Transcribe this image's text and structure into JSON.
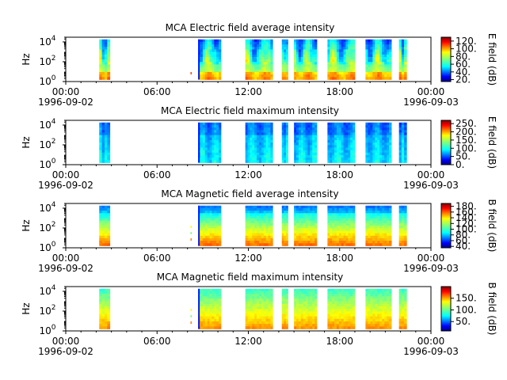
{
  "figure": {
    "background": "#ffffff"
  },
  "chart_data": [
    {
      "type": "heatmap",
      "title": "MCA  Electric field average intensity",
      "ylabel": "Hz",
      "yscale": "log",
      "ylim": [
        1,
        30000
      ],
      "yticks": [
        {
          "base": "10",
          "exp": "0"
        },
        {
          "base": "10",
          "exp": "2"
        },
        {
          "base": "10",
          "exp": "4"
        }
      ],
      "xlim": [
        "1996-09-02 00:00",
        "1996-09-03 00:00"
      ],
      "xticks": [
        "00:00",
        "06:00",
        "12:00",
        "18:00",
        "00:00"
      ],
      "xdates": [
        "1996-09-02",
        "1996-09-03"
      ],
      "colorbar": {
        "label": "E field (dB)",
        "colormap": "jet",
        "ticks": [
          "20.",
          "40.",
          "60.",
          "80.",
          "100.",
          "120."
        ]
      },
      "data_segments_hours": [
        [
          2.2,
          2.9
        ],
        [
          8.7,
          10.2
        ],
        [
          11.8,
          13.6
        ],
        [
          14.2,
          14.6
        ],
        [
          15.0,
          16.5
        ],
        [
          17.2,
          19.0
        ],
        [
          19.7,
          21.4
        ],
        [
          21.9,
          22.4
        ]
      ],
      "level_range_db": [
        15,
        130
      ]
    },
    {
      "type": "heatmap",
      "title": "MCA  Electric field maximum intensity",
      "ylabel": "Hz",
      "yscale": "log",
      "ylim": [
        1,
        30000
      ],
      "yticks": [
        {
          "base": "10",
          "exp": "0"
        },
        {
          "base": "10",
          "exp": "2"
        },
        {
          "base": "10",
          "exp": "4"
        }
      ],
      "xlim": [
        "1996-09-02 00:00",
        "1996-09-03 00:00"
      ],
      "xticks": [
        "00:00",
        "06:00",
        "12:00",
        "18:00",
        "00:00"
      ],
      "xdates": [
        "1996-09-02",
        "1996-09-03"
      ],
      "colorbar": {
        "label": "E field (dB)",
        "colormap": "jet",
        "ticks": [
          "0.",
          "50.",
          "100.",
          "150.",
          "200.",
          "250."
        ]
      },
      "data_segments_hours": [
        [
          2.2,
          2.9
        ],
        [
          8.7,
          10.2
        ],
        [
          11.8,
          13.6
        ],
        [
          14.2,
          14.6
        ],
        [
          15.0,
          16.5
        ],
        [
          17.2,
          19.0
        ],
        [
          19.7,
          21.4
        ],
        [
          21.9,
          22.4
        ]
      ],
      "level_range_db": [
        0,
        270
      ]
    },
    {
      "type": "heatmap",
      "title": "MCA  Magnetic field average intensity",
      "ylabel": "Hz",
      "yscale": "log",
      "ylim": [
        1,
        30000
      ],
      "yticks": [
        {
          "base": "10",
          "exp": "0"
        },
        {
          "base": "10",
          "exp": "2"
        },
        {
          "base": "10",
          "exp": "4"
        }
      ],
      "xlim": [
        "1996-09-02 00:00",
        "1996-09-03 00:00"
      ],
      "xticks": [
        "00:00",
        "06:00",
        "12:00",
        "18:00",
        "00:00"
      ],
      "xdates": [
        "1996-09-02",
        "1996-09-03"
      ],
      "colorbar": {
        "label": "B field (dB)",
        "colormap": "jet",
        "ticks": [
          "40.",
          "60.",
          "80.",
          "100.",
          "120.",
          "140.",
          "160.",
          "180."
        ]
      },
      "data_segments_hours": [
        [
          2.2,
          2.9
        ],
        [
          8.7,
          10.2
        ],
        [
          11.8,
          13.6
        ],
        [
          14.2,
          14.6
        ],
        [
          15.0,
          16.5
        ],
        [
          17.2,
          19.0
        ],
        [
          19.7,
          21.4
        ],
        [
          21.9,
          22.4
        ]
      ],
      "level_range_db": [
        35,
        190
      ]
    },
    {
      "type": "heatmap",
      "title": "MCA  Magnetic field maximum intensity",
      "ylabel": "Hz",
      "yscale": "log",
      "ylim": [
        1,
        30000
      ],
      "yticks": [
        {
          "base": "10",
          "exp": "0"
        },
        {
          "base": "10",
          "exp": "2"
        },
        {
          "base": "10",
          "exp": "4"
        }
      ],
      "xlim": [
        "1996-09-02 00:00",
        "1996-09-03 00:00"
      ],
      "xticks": [
        "00:00",
        "06:00",
        "12:00",
        "18:00",
        "00:00"
      ],
      "xdates": [
        "1996-09-02",
        "1996-09-03"
      ],
      "colorbar": {
        "label": "B field (dB)",
        "colormap": "jet",
        "ticks": [
          "50.",
          "100.",
          "150."
        ]
      },
      "data_segments_hours": [
        [
          2.2,
          2.9
        ],
        [
          8.7,
          10.2
        ],
        [
          11.8,
          13.6
        ],
        [
          14.2,
          14.6
        ],
        [
          15.0,
          16.5
        ],
        [
          17.2,
          19.0
        ],
        [
          19.7,
          21.4
        ],
        [
          21.9,
          22.4
        ]
      ],
      "level_range_db": [
        10,
        200
      ]
    }
  ]
}
